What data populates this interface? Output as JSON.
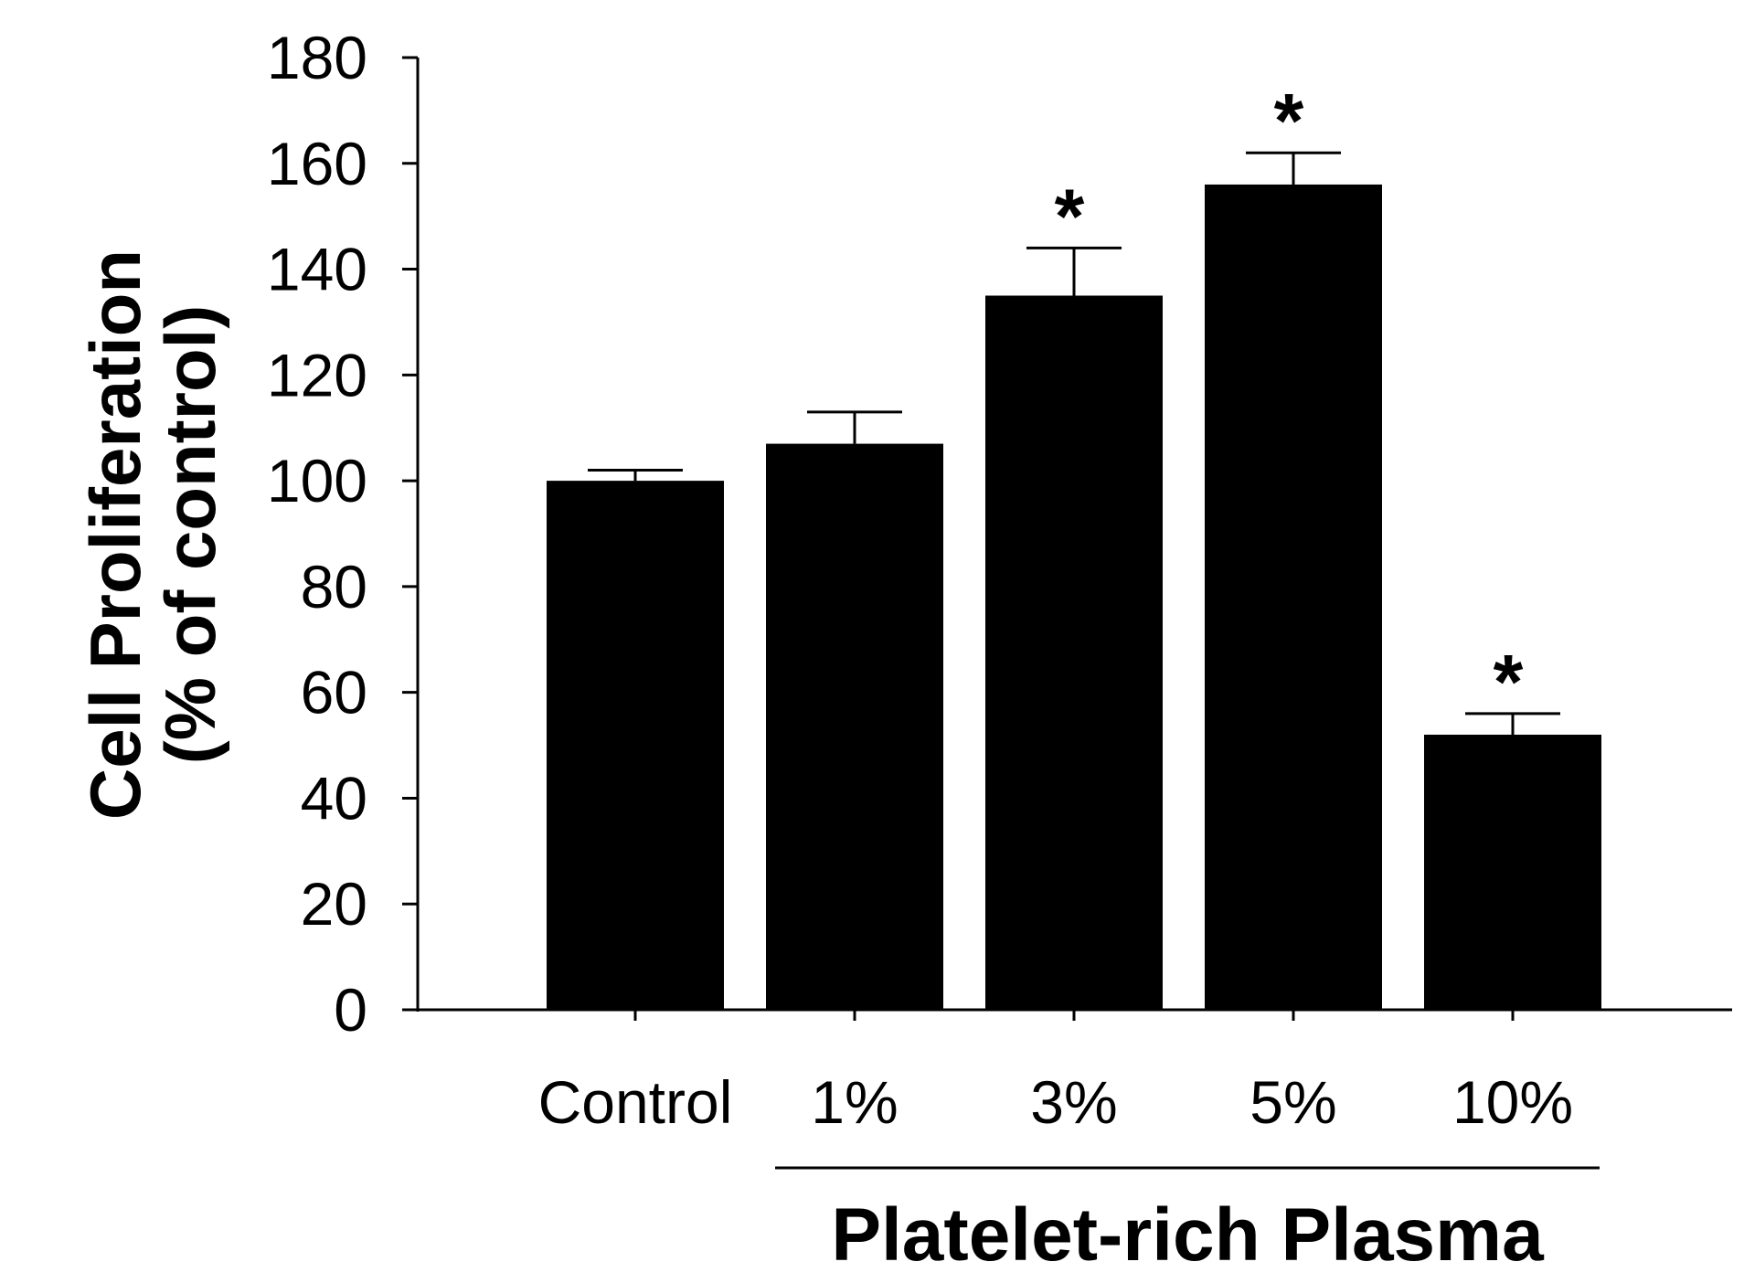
{
  "chart_data": {
    "type": "bar",
    "title": "",
    "xlabel": "",
    "ylabel_line1": "Cell Proliferation",
    "ylabel_line2": "(% of control)",
    "group_label": "Platelet-rich Plasma",
    "categories": [
      "Control",
      "1%",
      "3%",
      "5%",
      "10%"
    ],
    "values": [
      100,
      107,
      135,
      156,
      52
    ],
    "errors": [
      2,
      6,
      9,
      6,
      4
    ],
    "significance": [
      "",
      "",
      "*",
      "*",
      "*"
    ],
    "ylim": [
      0,
      180
    ],
    "yticks": [
      0,
      20,
      40,
      60,
      80,
      100,
      120,
      140,
      160,
      180
    ],
    "ytick_labels": [
      "0",
      "20",
      "40",
      "60",
      "80",
      "100",
      "120",
      "140",
      "160",
      "180"
    ],
    "grid": false,
    "bar_color": "#000000"
  }
}
